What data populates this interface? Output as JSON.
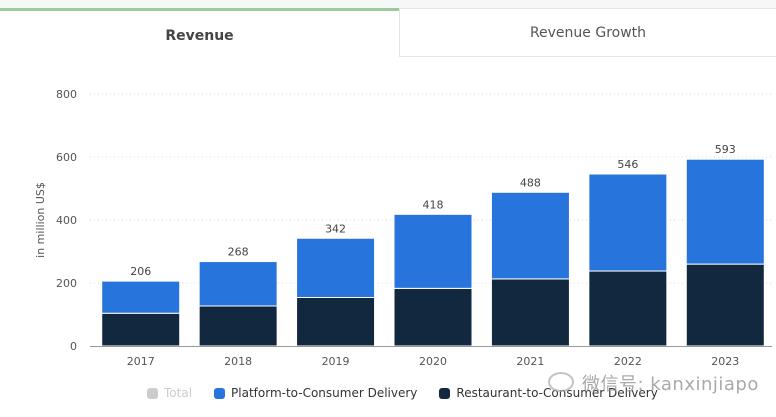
{
  "tabs": [
    {
      "label": "Revenue",
      "active": true
    },
    {
      "label": "Revenue Growth",
      "active": false
    }
  ],
  "colors": {
    "platform": "#2775dc",
    "restaurant": "#12283f",
    "total": "#cccccc",
    "tab_accent": "#9ccc9e"
  },
  "watermark": "微信号: kanxinjiapo",
  "chart_data": {
    "type": "bar",
    "stacked": true,
    "title": "",
    "xlabel": "",
    "ylabel": "in million US$",
    "ylim": [
      0,
      800
    ],
    "yticks": [
      0,
      200,
      400,
      600,
      800
    ],
    "grid": true,
    "legend_position": "bottom",
    "categories": [
      "2017",
      "2018",
      "2019",
      "2020",
      "2021",
      "2022",
      "2023"
    ],
    "totals": [
      206,
      268,
      342,
      418,
      488,
      546,
      593
    ],
    "series": [
      {
        "name": "Restaurant-to-Consumer Delivery",
        "color": "#12283f",
        "values": [
          104,
          127,
          154,
          183,
          213,
          238,
          260
        ]
      },
      {
        "name": "Platform-to-Consumer Delivery",
        "color": "#2775dc",
        "values": [
          102,
          141,
          188,
          235,
          275,
          308,
          333
        ]
      }
    ],
    "legend": [
      {
        "name": "Total",
        "color": "#cccccc",
        "disabled": true
      },
      {
        "name": "Platform-to-Consumer Delivery",
        "color": "#2775dc",
        "disabled": false
      },
      {
        "name": "Restaurant-to-Consumer Delivery",
        "color": "#12283f",
        "disabled": false
      }
    ]
  }
}
